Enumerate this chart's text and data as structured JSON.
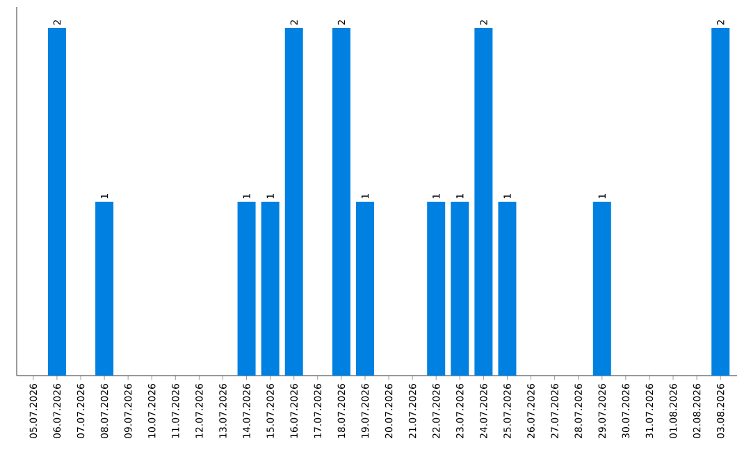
{
  "chart_data": {
    "type": "bar",
    "categories": [
      "05.07.2026",
      "06.07.2026",
      "07.07.2026",
      "08.07.2026",
      "09.07.2026",
      "10.07.2026",
      "11.07.2026",
      "12.07.2026",
      "13.07.2026",
      "14.07.2026",
      "15.07.2026",
      "16.07.2026",
      "17.07.2026",
      "18.07.2026",
      "19.07.2026",
      "20.07.2026",
      "21.07.2026",
      "22.07.2026",
      "23.07.2026",
      "24.07.2026",
      "25.07.2026",
      "26.07.2026",
      "27.07.2026",
      "28.07.2026",
      "29.07.2026",
      "30.07.2026",
      "31.07.2026",
      "01.08.2026",
      "02.08.2026",
      "03.08.2026"
    ],
    "values": [
      0,
      2,
      0,
      1,
      0,
      0,
      0,
      0,
      0,
      1,
      1,
      2,
      0,
      2,
      1,
      0,
      0,
      1,
      1,
      2,
      1,
      0,
      0,
      0,
      1,
      0,
      0,
      0,
      0,
      2
    ],
    "value_labels": [
      null,
      "2",
      null,
      "1",
      null,
      null,
      null,
      null,
      null,
      "1",
      "1",
      "2",
      null,
      "2",
      "1",
      null,
      null,
      "1",
      "1",
      "2",
      "1",
      null,
      null,
      null,
      "1",
      null,
      null,
      null,
      null,
      "2"
    ],
    "color": "#0080e0"
  }
}
